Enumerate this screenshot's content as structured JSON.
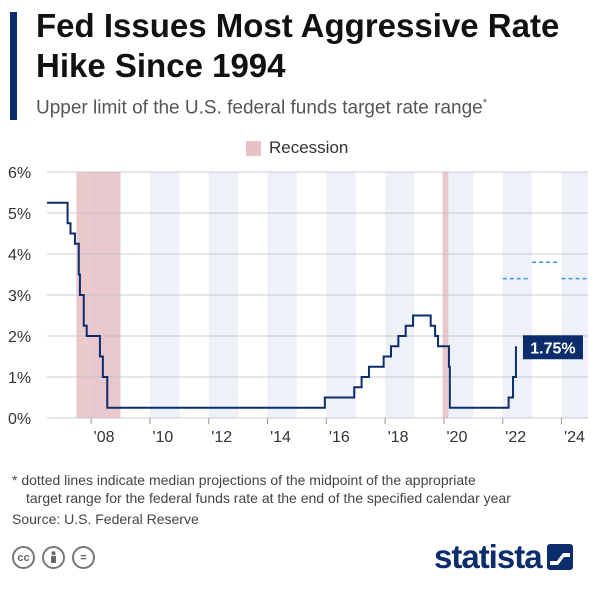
{
  "title": "Fed Issues Most Aggressive Rate Hike Since 1994",
  "subtitle": "Upper limit of the U.S. federal funds target rate range",
  "subtitle_mark": "*",
  "footnote_line1": "* dotted lines indicate median projections of the midpoint of the appropriate",
  "footnote_line2": "target range for the federal funds rate at the end of the specified calendar year",
  "source": "Source: U.S. Federal Reserve",
  "brand": "statista",
  "license_icons": [
    "cc-icon",
    "by-person-icon",
    "nd-equals-icon"
  ],
  "chart_data": {
    "type": "line",
    "title": "",
    "xlabel": "",
    "ylabel": "",
    "ylim": [
      0,
      6
    ],
    "xlim": [
      2006.5,
      2024.9
    ],
    "y_ticks": [
      {
        "value": 0,
        "label": "0%"
      },
      {
        "value": 1,
        "label": "1%"
      },
      {
        "value": 2,
        "label": "2%"
      },
      {
        "value": 3,
        "label": "3%"
      },
      {
        "value": 4,
        "label": "4%"
      },
      {
        "value": 5,
        "label": "5%"
      },
      {
        "value": 6,
        "label": "6%"
      }
    ],
    "x_ticks": [
      {
        "value": 2008,
        "label": "'08"
      },
      {
        "value": 2010,
        "label": "'10"
      },
      {
        "value": 2012,
        "label": "'12"
      },
      {
        "value": 2014,
        "label": "'14"
      },
      {
        "value": 2016,
        "label": "'16"
      },
      {
        "value": 2018,
        "label": "'18"
      },
      {
        "value": 2020,
        "label": "'20"
      },
      {
        "value": 2022,
        "label": "'22"
      },
      {
        "value": 2024,
        "label": "'24"
      }
    ],
    "grid": true,
    "legend": {
      "position": "top-center",
      "items": [
        {
          "name": "Recession",
          "color": "#e8c1c6"
        }
      ]
    },
    "recessions": [
      {
        "start": 2007.5,
        "end": 2009.0
      },
      {
        "start": 2019.95,
        "end": 2020.15
      }
    ],
    "series": [
      {
        "name": "",
        "color": "#0b2d6b",
        "step": true,
        "points": [
          {
            "x": 2006.5,
            "y": 5.25
          },
          {
            "x": 2007.2,
            "y": 4.75
          },
          {
            "x": 2007.3,
            "y": 4.5
          },
          {
            "x": 2007.45,
            "y": 4.25
          },
          {
            "x": 2007.58,
            "y": 3.5
          },
          {
            "x": 2007.62,
            "y": 3.0
          },
          {
            "x": 2007.75,
            "y": 2.25
          },
          {
            "x": 2007.85,
            "y": 2.0
          },
          {
            "x": 2008.3,
            "y": 1.5
          },
          {
            "x": 2008.4,
            "y": 1.0
          },
          {
            "x": 2008.55,
            "y": 0.25
          },
          {
            "x": 2015.95,
            "y": 0.5
          },
          {
            "x": 2016.95,
            "y": 0.75
          },
          {
            "x": 2017.2,
            "y": 1.0
          },
          {
            "x": 2017.45,
            "y": 1.25
          },
          {
            "x": 2017.95,
            "y": 1.5
          },
          {
            "x": 2018.2,
            "y": 1.75
          },
          {
            "x": 2018.45,
            "y": 2.0
          },
          {
            "x": 2018.7,
            "y": 2.25
          },
          {
            "x": 2018.95,
            "y": 2.5
          },
          {
            "x": 2019.55,
            "y": 2.25
          },
          {
            "x": 2019.7,
            "y": 2.0
          },
          {
            "x": 2019.8,
            "y": 1.75
          },
          {
            "x": 2020.17,
            "y": 1.25
          },
          {
            "x": 2020.2,
            "y": 0.25
          },
          {
            "x": 2022.2,
            "y": 0.5
          },
          {
            "x": 2022.35,
            "y": 1.0
          },
          {
            "x": 2022.45,
            "y": 1.75
          }
        ]
      }
    ],
    "projections": [
      {
        "year": 2022,
        "value": 3.4
      },
      {
        "year": 2023,
        "value": 3.8
      },
      {
        "year": 2024,
        "value": 3.4
      }
    ],
    "projection_color": "#3a9ad9",
    "annotation": {
      "label": "1.75%",
      "x": 2022.45,
      "y": 1.75,
      "bg": "#0b2d6b",
      "color": "#ffffff"
    }
  }
}
